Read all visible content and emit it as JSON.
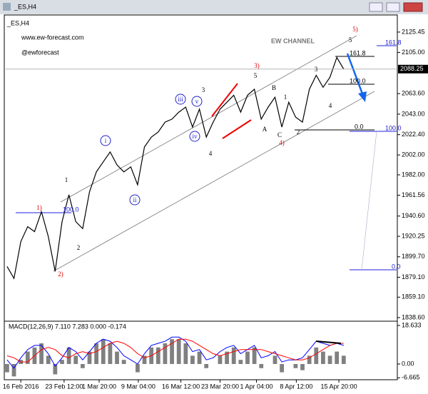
{
  "chart_data": [
    {
      "type": "line",
      "title": "_ES,H4",
      "color": "#000000",
      "annotations": [
        "www.ew-forecast.com",
        "@ewforecast",
        "EW CHANNEL"
      ],
      "values": [
        1890,
        1878,
        1915,
        1930,
        1925,
        1945,
        1920,
        1885,
        1935,
        1962,
        1935,
        1928,
        1965,
        1985,
        1995,
        2005,
        1992,
        1985,
        1990,
        1972,
        2010,
        2020,
        2025,
        2035,
        2038,
        2045,
        2050,
        2030,
        2048,
        2020,
        2035,
        2048,
        2055,
        2062,
        2045,
        2062,
        2068,
        2038,
        2050,
        2060,
        2030,
        2055,
        2040,
        2035,
        2068,
        2082,
        2070,
        2080,
        2100,
        2088.25
      ],
      "current_price": 2088.25,
      "xlim": [
        -0.2,
        56.6
      ],
      "xticks": [
        {
          "value": 2,
          "label": "16 Feb 2016"
        },
        {
          "value": 8.3,
          "label": "23 Feb 12:00"
        },
        {
          "value": 13.4,
          "label": "1 Mar 20:00"
        },
        {
          "value": 19.1,
          "label": "9 Mar 04:00"
        },
        {
          "value": 25.3,
          "label": "16 Mar 12:00"
        },
        {
          "value": 31,
          "label": "23 Mar 20:00"
        },
        {
          "value": 36.3,
          "label": "1 Apr 04:00"
        },
        {
          "value": 42.1,
          "label": "8 Apr 12:00"
        },
        {
          "value": 48.3,
          "label": "15 Apr 20:00"
        }
      ],
      "ylim": [
        1836.4,
        2141.9
      ],
      "yticks": [
        {
          "value": 2125.45,
          "label": "2125.45"
        },
        {
          "value": 2105,
          "label": "2105.00"
        },
        {
          "value": 2063.6,
          "label": "2063.60"
        },
        {
          "value": 2043,
          "label": "2043.00"
        },
        {
          "value": 2022.4,
          "label": "2022.40"
        },
        {
          "value": 2002,
          "label": "2002.00"
        },
        {
          "value": 1982,
          "label": "1982.00"
        },
        {
          "value": 1961.56,
          "label": "1961.56"
        },
        {
          "value": 1940.6,
          "label": "1940.60"
        },
        {
          "value": 1920.25,
          "label": "1920.25"
        },
        {
          "value": 1899.7,
          "label": "1899.70"
        },
        {
          "value": 1879.1,
          "label": "1879.10"
        },
        {
          "value": 1859.1,
          "label": "1859.10"
        },
        {
          "value": 1838.6,
          "label": "1838.60"
        }
      ],
      "wave_labels_red": [
        "1)",
        "2)",
        "3)",
        "4)",
        "5)"
      ],
      "wave_labels_black": [
        "1",
        "2",
        "3",
        "4",
        "5",
        "A",
        "B",
        "C",
        "1",
        "2",
        "3",
        "4",
        "5"
      ],
      "wave_labels_circled": [
        "i",
        "ii",
        "iii",
        "iv",
        "v"
      ],
      "fib_labels_black": [
        "161.8",
        "100.0",
        "0.0"
      ],
      "fib_labels_blue": [
        "161.8",
        "100.0",
        "0.0",
        "100.0"
      ]
    },
    {
      "type": "macd",
      "title": "MACD(12,26,9) 7.110 7.283 0.000 -0.174",
      "color": "#808080",
      "values": [
        -4,
        -6,
        2,
        6,
        8,
        10,
        4,
        -5,
        2,
        8,
        4,
        -2,
        6,
        10,
        12,
        10,
        6,
        2,
        0,
        -4,
        4,
        8,
        8,
        10,
        12,
        12,
        10,
        4,
        6,
        -2,
        0,
        4,
        6,
        8,
        2,
        6,
        8,
        -2,
        0,
        4,
        -4,
        0,
        -2,
        -3,
        4,
        8,
        6,
        4,
        6,
        4
      ],
      "lines": [
        {
          "color": "#0000ff",
          "values": [
            2,
            -2,
            3,
            7,
            9,
            9,
            5,
            -1,
            3,
            8,
            6,
            2,
            6,
            10,
            12,
            11,
            8,
            4,
            2,
            0,
            5,
            9,
            10,
            11,
            13,
            13,
            11,
            6,
            7,
            2,
            3,
            6,
            8,
            9,
            5,
            7,
            9,
            3,
            4,
            6,
            1,
            2,
            2,
            3,
            7,
            11,
            10,
            9,
            10,
            9
          ]
        },
        {
          "color": "#ff0000",
          "values": [
            4,
            3,
            1,
            1,
            4,
            7,
            8,
            7,
            4,
            3,
            5,
            6,
            5,
            6,
            8,
            10,
            11,
            10,
            8,
            5,
            3,
            4,
            6,
            8,
            10,
            12,
            12,
            11,
            9,
            7,
            5,
            4,
            5,
            6,
            7,
            7,
            7,
            7,
            6,
            5,
            4,
            3,
            2,
            2,
            3,
            5,
            7,
            9,
            10,
            10
          ]
        }
      ],
      "ylim": [
        20,
        -7.6
      ],
      "yticks": [
        18.633,
        {
          "value": 0,
          "label": "0.00"
        },
        -6.665
      ]
    }
  ]
}
